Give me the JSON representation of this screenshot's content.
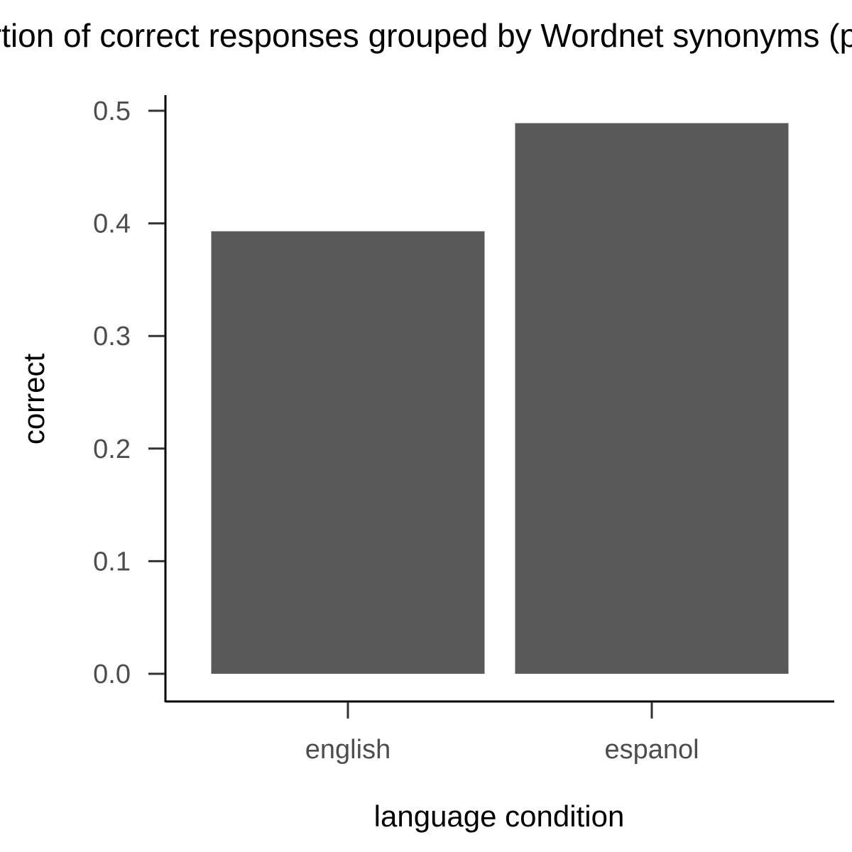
{
  "chart_data": {
    "type": "bar",
    "title": "Proportion of correct responses grouped by Wordnet synonyms (pooled)",
    "xlabel": "language condition",
    "ylabel": "correct",
    "categories": [
      "english",
      "espanol"
    ],
    "values": [
      0.393,
      0.489
    ],
    "ylim": [
      0,
      0.5
    ],
    "yticks": [
      "0.0",
      "0.1",
      "0.2",
      "0.3",
      "0.4",
      "0.5"
    ],
    "bar_color": "#595959",
    "axis_color": "#000000",
    "grid": false,
    "legend": "none"
  }
}
